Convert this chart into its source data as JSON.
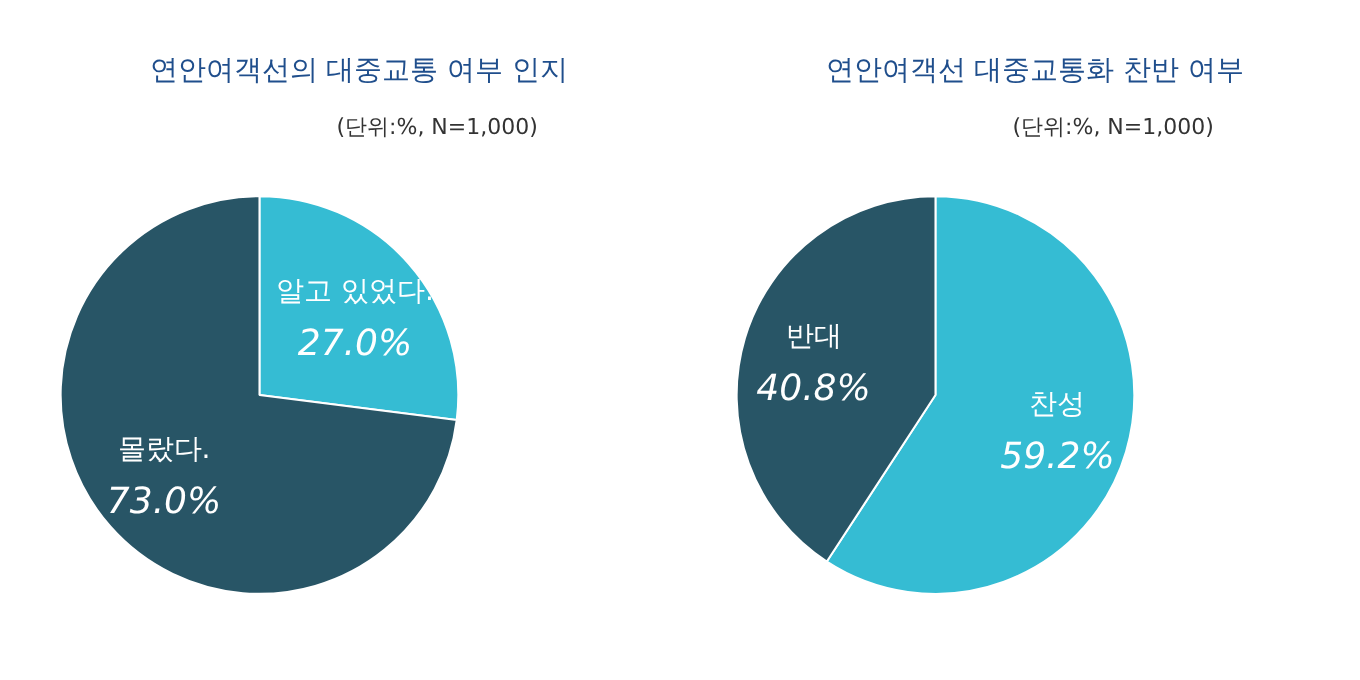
{
  "chart_data": [
    {
      "type": "pie",
      "title": "연안여객선의 대중교통 여부 인지",
      "subtitle": "(단위:%, N=1,000)",
      "categories": [
        "알고 있었다.",
        "몰랐다."
      ],
      "values": [
        27.0,
        73.0
      ],
      "value_labels": [
        "27.0%",
        "73.0%"
      ],
      "colors": [
        "#35bcd3",
        "#285566"
      ],
      "legend": false
    },
    {
      "type": "pie",
      "title": "연안여객선 대중교통화 찬반 여부",
      "subtitle": "(단위:%, N=1,000)",
      "categories": [
        "찬성",
        "반대"
      ],
      "values": [
        59.2,
        40.8
      ],
      "value_labels": [
        "59.2%",
        "40.8%"
      ],
      "colors": [
        "#35bcd3",
        "#285566"
      ],
      "legend": false
    }
  ]
}
